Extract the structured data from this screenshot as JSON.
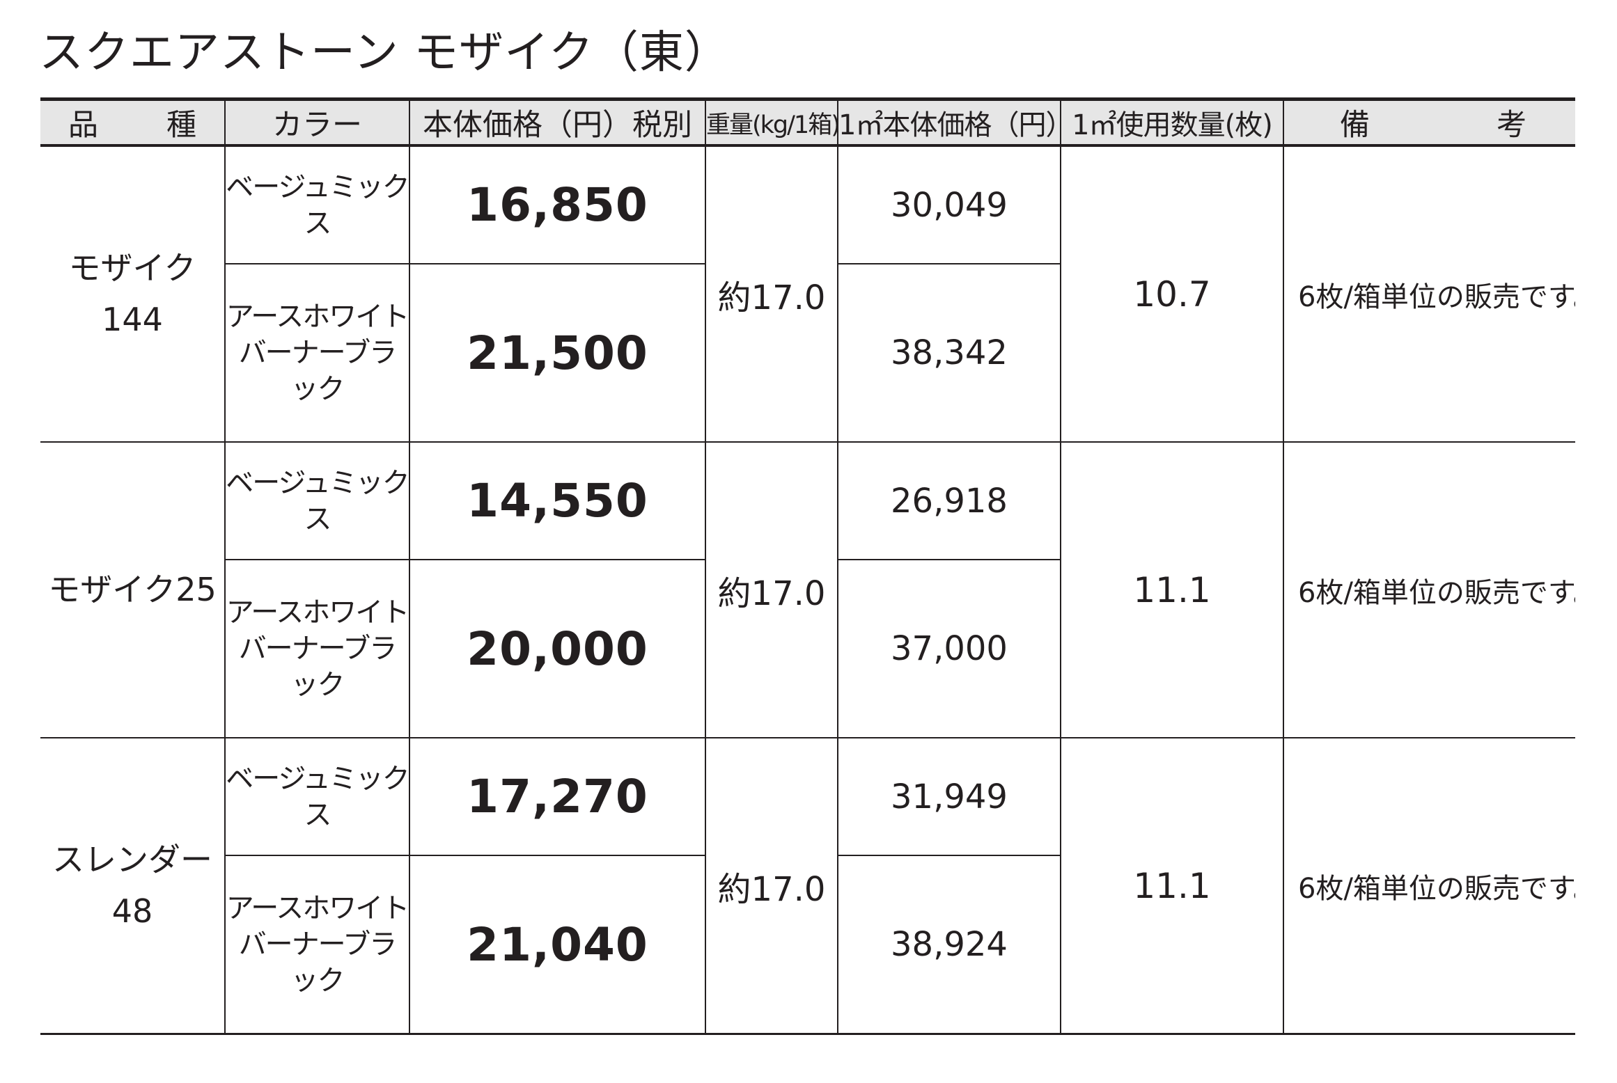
{
  "title": "スクエアストーン モザイク（東）",
  "headers": {
    "product": "品　種",
    "color": "カラー",
    "price": "本体価格（円）税別",
    "weight": "重量(kg/1箱)",
    "unit_price": "1㎡本体価格（円）",
    "qty": "1㎡使用数量(枚)",
    "remarks": "備　考"
  },
  "products": [
    {
      "name": "モザイク\n144",
      "weight": "約17.0",
      "qty": "10.7",
      "note": "6枚/箱単位の販売です。",
      "variants": [
        {
          "color": "ベージュミックス",
          "price": "16,850",
          "unit_price": "30,049"
        },
        {
          "color": "アースホワイト\nバーナーブラック",
          "price": "21,500",
          "unit_price": "38,342"
        }
      ]
    },
    {
      "name": "モザイク25",
      "weight": "約17.0",
      "qty": "11.1",
      "note": "6枚/箱単位の販売です。",
      "variants": [
        {
          "color": "ベージュミックス",
          "price": "14,550",
          "unit_price": "26,918"
        },
        {
          "color": "アースホワイト\nバーナーブラック",
          "price": "20,000",
          "unit_price": "37,000"
        }
      ]
    },
    {
      "name": "スレンダー\n48",
      "weight": "約17.0",
      "qty": "11.1",
      "note": "6枚/箱単位の販売です。",
      "variants": [
        {
          "color": "ベージュミックス",
          "price": "17,270",
          "unit_price": "31,949"
        },
        {
          "color": "アースホワイト\nバーナーブラック",
          "price": "21,040",
          "unit_price": "38,924"
        }
      ]
    }
  ]
}
